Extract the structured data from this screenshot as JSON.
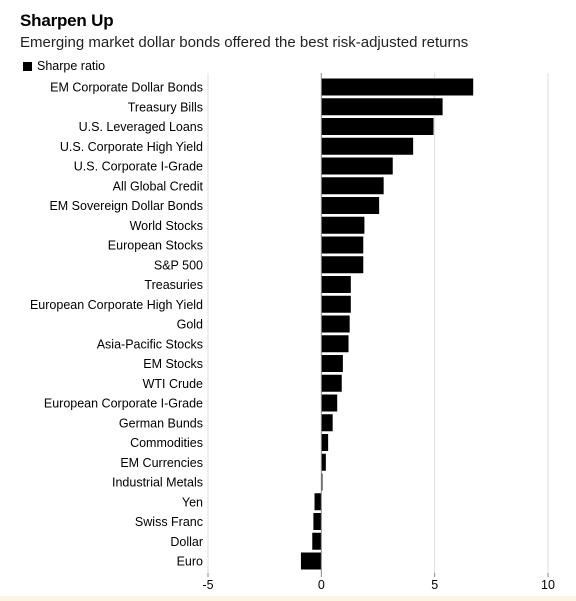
{
  "title": "Sharpen Up",
  "subtitle": "Emerging market dollar bonds offered the best risk-adjusted returns",
  "legend_label": "Sharpe ratio",
  "colors": {
    "bar": "#000000",
    "grid": "#dddddd",
    "axis": "#888888"
  },
  "chart_data": {
    "type": "bar",
    "orientation": "horizontal",
    "title": "Sharpen Up",
    "subtitle": "Emerging market dollar bonds offered the best risk-adjusted returns",
    "xlabel": "",
    "ylabel": "",
    "xlim": [
      -5,
      10
    ],
    "xticks": [
      -5,
      0,
      5,
      10
    ],
    "grid": true,
    "legend": "top-left",
    "categories": [
      "EM Corporate Dollar Bonds",
      "Treasury Bills",
      "U.S. Leveraged Loans",
      "U.S. Corporate High Yield",
      "U.S. Corporate I-Grade",
      "All Global Credit",
      "EM Sovereign Dollar Bonds",
      "World Stocks",
      "European Stocks",
      "S&P 500",
      "Treasuries",
      "European Corporate High Yield",
      "Gold",
      "Asia-Pacific Stocks",
      "EM Stocks",
      "WTI Crude",
      "European Corporate I-Grade",
      "German Bunds",
      "Commodities",
      "EM Currencies",
      "Industrial Metals",
      "Yen",
      "Swiss Franc",
      "Dollar",
      "Euro"
    ],
    "series": [
      {
        "name": "Sharpe ratio",
        "values": [
          6.7,
          5.35,
          4.95,
          4.05,
          3.15,
          2.75,
          2.55,
          1.9,
          1.85,
          1.85,
          1.3,
          1.3,
          1.25,
          1.2,
          0.95,
          0.9,
          0.7,
          0.5,
          0.3,
          0.2,
          0.05,
          -0.3,
          -0.35,
          -0.4,
          -0.9
        ]
      }
    ]
  }
}
